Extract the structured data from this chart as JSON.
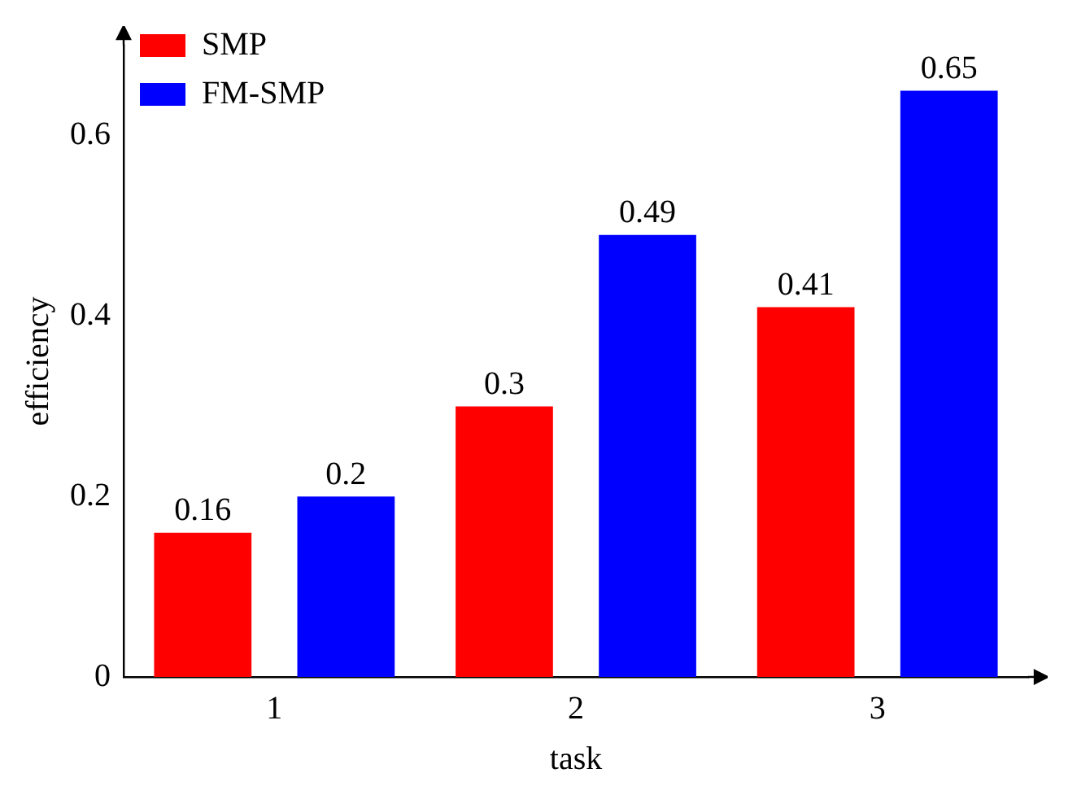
{
  "chart_data": {
    "type": "bar",
    "xlabel": "task",
    "ylabel": "efficiency",
    "categories": [
      "1",
      "2",
      "3"
    ],
    "series": [
      {
        "name": "SMP",
        "color": "#ff0000",
        "values": [
          0.16,
          0.3,
          0.41
        ]
      },
      {
        "name": "FM-SMP",
        "color": "#0000ff",
        "values": [
          0.2,
          0.49,
          0.65
        ]
      }
    ],
    "ylim": [
      0,
      0.7
    ],
    "yticks": [
      0,
      0.2,
      0.4,
      0.6
    ],
    "grid": false,
    "legend": "top left",
    "data_labels": true
  }
}
